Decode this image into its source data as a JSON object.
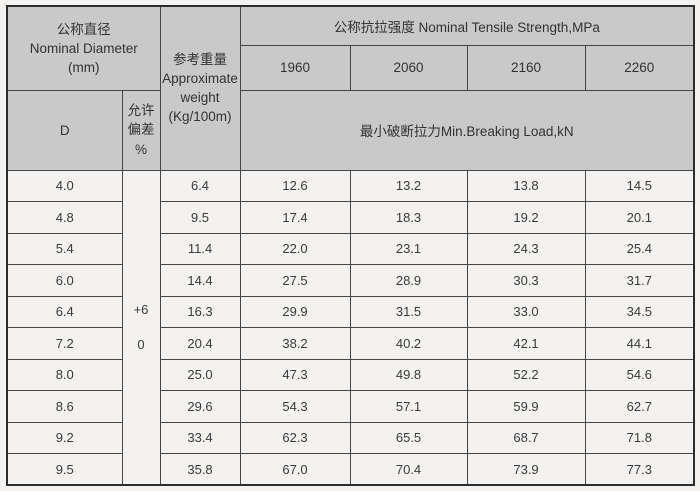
{
  "colors": {
    "header_bg": "#c9c9c9",
    "cell_bg": "#f3f2f0",
    "border": "#464646",
    "outer_border": "#2c2c2c",
    "text": "#333333"
  },
  "table": {
    "header": {
      "diameter_title": "公称直径\nNominal Diameter\n(mm)",
      "weight_title": "参考重量\nApproximate\nweight\n(Kg/100m)",
      "strength_title": "公称抗拉强度 Nominal Tensile Strength,MPa",
      "strength_grades": [
        "1960",
        "2060",
        "2160",
        "2260"
      ],
      "d_label": "D",
      "tolerance_label": "允许\n偏差\n%",
      "breaking_load_title": "最小破断拉力Min.Breaking Load,kN"
    },
    "tolerance": {
      "upper": "+6",
      "lower": "0"
    },
    "rows": [
      {
        "cells": [
          "4.0",
          "6.4",
          "12.6",
          "13.2",
          "13.8",
          "14.5"
        ]
      },
      {
        "cells": [
          "4.8",
          "9.5",
          "17.4",
          "18.3",
          "19.2",
          "20.1"
        ]
      },
      {
        "cells": [
          "5.4",
          "11.4",
          "22.0",
          "23.1",
          "24.3",
          "25.4"
        ]
      },
      {
        "cells": [
          "6.0",
          "14.4",
          "27.5",
          "28.9",
          "30.3",
          "31.7"
        ]
      },
      {
        "cells": [
          "6.4",
          "16.3",
          "29.9",
          "31.5",
          "33.0",
          "34.5"
        ]
      },
      {
        "cells": [
          "7.2",
          "20.4",
          "38.2",
          "40.2",
          "42.1",
          "44.1"
        ]
      },
      {
        "cells": [
          "8.0",
          "25.0",
          "47.3",
          "49.8",
          "52.2",
          "54.6"
        ]
      },
      {
        "cells": [
          "8.6",
          "29.6",
          "54.3",
          "57.1",
          "59.9",
          "62.7"
        ]
      },
      {
        "cells": [
          "9.2",
          "33.4",
          "62.3",
          "65.5",
          "68.7",
          "71.8"
        ]
      },
      {
        "cells": [
          "9.5",
          "35.8",
          "67.0",
          "70.4",
          "73.9",
          "77.3"
        ]
      }
    ]
  }
}
